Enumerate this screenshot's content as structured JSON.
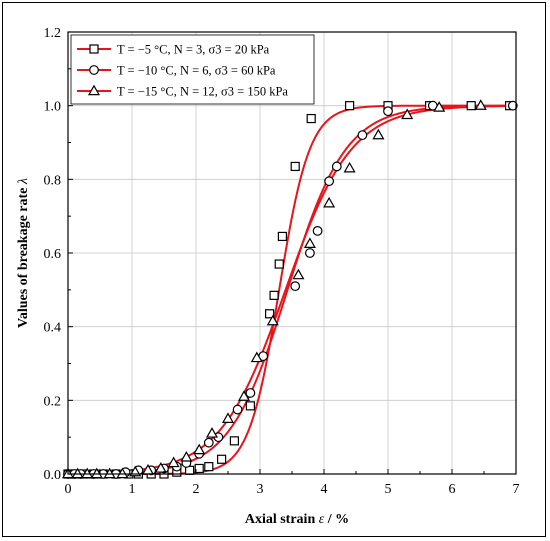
{
  "chart_data": {
    "type": "line",
    "xlabel": "Axial strain",
    "xlabel_symbol": "ε",
    "xlabel_unit": " / %",
    "ylabel": "Values of breakage rate",
    "ylabel_symbol": "λ",
    "xlim": [
      0,
      7
    ],
    "ylim": [
      0,
      1.2
    ],
    "xticks": [
      "0",
      "1",
      "2",
      "3",
      "4",
      "5",
      "6",
      "7"
    ],
    "yticks": [
      "0.0",
      "0.2",
      "0.4",
      "0.6",
      "0.8",
      "1.0",
      "1.2"
    ],
    "grid": true,
    "legend_position": "top-left",
    "line_color": "#e8141c",
    "series": [
      {
        "name": "T = −5 °C, N = 3, σ3 = 20 kPa",
        "legend": {
          "T": "−5 °C",
          "N": "3",
          "s": "20 kPa"
        },
        "marker": "square",
        "fit": {
          "x0": 3.3,
          "k": 4.2
        },
        "x": [
          0.0,
          0.1,
          0.25,
          0.4,
          0.55,
          0.75,
          0.95,
          1.1,
          1.3,
          1.5,
          1.7,
          1.9,
          2.05,
          2.2,
          2.4,
          2.6,
          2.85,
          3.15,
          3.22,
          3.3,
          3.35,
          3.55,
          3.8,
          4.4,
          5.0,
          5.65,
          6.3,
          6.9
        ],
        "y": [
          0.0,
          0.0,
          0.0,
          0.0,
          0.0,
          0.0,
          0.0,
          0.0,
          0.0,
          0.0,
          0.005,
          0.01,
          0.015,
          0.02,
          0.04,
          0.09,
          0.185,
          0.435,
          0.485,
          0.57,
          0.645,
          0.835,
          0.965,
          1.0,
          1.0,
          1.0,
          1.0,
          1.0
        ]
      },
      {
        "name": "T = −10 °C, N = 6, σ3 = 60 kPa",
        "legend": {
          "T": "−10 °C",
          "N": "6",
          "s": "60 kPa"
        },
        "marker": "circle",
        "fit": {
          "x0": 3.43,
          "k": 2.2
        },
        "x": [
          0.0,
          0.1,
          0.2,
          0.4,
          0.55,
          0.75,
          0.9,
          1.1,
          1.3,
          1.5,
          1.7,
          1.85,
          2.05,
          2.2,
          2.35,
          2.65,
          2.85,
          3.05,
          3.55,
          3.78,
          3.9,
          4.08,
          4.2,
          4.6,
          5.0,
          5.7,
          6.95
        ],
        "y": [
          0.0,
          0.0,
          0.0,
          0.0,
          0.0,
          0.0,
          0.005,
          0.01,
          0.01,
          0.015,
          0.02,
          0.03,
          0.055,
          0.085,
          0.1,
          0.175,
          0.22,
          0.32,
          0.51,
          0.6,
          0.66,
          0.795,
          0.835,
          0.92,
          0.985,
          1.0,
          1.0
        ]
      },
      {
        "name": "T = −15 °C, N = 12, σ3 = 150 kPa",
        "legend": {
          "T": "−15 °C",
          "N": "12",
          "s": "150 kPa"
        },
        "marker": "triangle",
        "fit": {
          "x0": 3.4,
          "k": 1.95
        },
        "x": [
          0.0,
          0.15,
          0.3,
          0.45,
          0.65,
          0.85,
          1.05,
          1.25,
          1.45,
          1.65,
          1.85,
          2.05,
          2.25,
          2.5,
          2.75,
          2.95,
          3.2,
          3.6,
          3.78,
          4.08,
          4.4,
          4.85,
          5.3,
          5.8,
          6.45
        ],
        "y": [
          0.0,
          0.0,
          0.0,
          0.0,
          0.0,
          0.0,
          0.005,
          0.01,
          0.015,
          0.03,
          0.045,
          0.065,
          0.11,
          0.15,
          0.21,
          0.315,
          0.415,
          0.54,
          0.625,
          0.735,
          0.83,
          0.92,
          0.975,
          0.995,
          1.0
        ]
      }
    ]
  }
}
